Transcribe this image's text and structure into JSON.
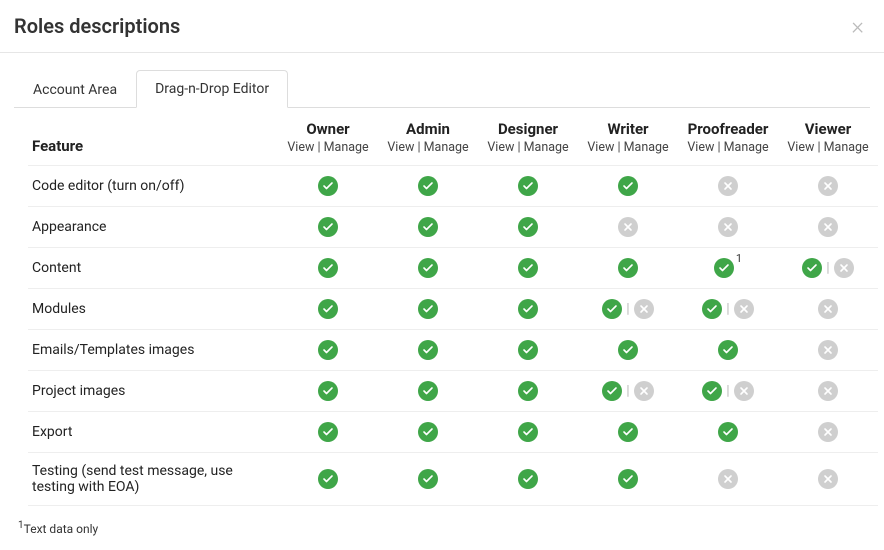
{
  "modal": {
    "title": "Roles descriptions"
  },
  "tabs": [
    {
      "id": "account-area",
      "label": "Account Area",
      "active": false
    },
    {
      "id": "dnd-editor",
      "label": "Drag-n-Drop Editor",
      "active": true
    }
  ],
  "table": {
    "feature_header": "Feature",
    "role_sub": "View | Manage",
    "roles": [
      {
        "id": "owner",
        "name": "Owner"
      },
      {
        "id": "admin",
        "name": "Admin"
      },
      {
        "id": "designer",
        "name": "Designer"
      },
      {
        "id": "writer",
        "name": "Writer"
      },
      {
        "id": "proofreader",
        "name": "Proofreader"
      },
      {
        "id": "viewer",
        "name": "Viewer"
      }
    ],
    "features": [
      {
        "id": "code-editor",
        "label": "Code editor (turn on/off)",
        "cells": [
          {
            "t": "yes"
          },
          {
            "t": "yes"
          },
          {
            "t": "yes"
          },
          {
            "t": "yes"
          },
          {
            "t": "no"
          },
          {
            "t": "no"
          }
        ]
      },
      {
        "id": "appearance",
        "label": "Appearance",
        "cells": [
          {
            "t": "yes"
          },
          {
            "t": "yes"
          },
          {
            "t": "yes"
          },
          {
            "t": "no"
          },
          {
            "t": "no"
          },
          {
            "t": "no"
          }
        ]
      },
      {
        "id": "content",
        "label": "Content",
        "cells": [
          {
            "t": "yes"
          },
          {
            "t": "yes"
          },
          {
            "t": "yes"
          },
          {
            "t": "yes"
          },
          {
            "t": "yes",
            "sup": "1"
          },
          {
            "t": "split",
            "view": "yes",
            "manage": "no"
          }
        ]
      },
      {
        "id": "modules",
        "label": "Modules",
        "cells": [
          {
            "t": "yes"
          },
          {
            "t": "yes"
          },
          {
            "t": "yes"
          },
          {
            "t": "split",
            "view": "yes",
            "manage": "no"
          },
          {
            "t": "split",
            "view": "yes",
            "manage": "no"
          },
          {
            "t": "no"
          }
        ]
      },
      {
        "id": "emails-templates-images",
        "label": "Emails/Templates images",
        "cells": [
          {
            "t": "yes"
          },
          {
            "t": "yes"
          },
          {
            "t": "yes"
          },
          {
            "t": "yes"
          },
          {
            "t": "yes"
          },
          {
            "t": "no"
          }
        ]
      },
      {
        "id": "project-images",
        "label": "Project images",
        "cells": [
          {
            "t": "yes"
          },
          {
            "t": "yes"
          },
          {
            "t": "yes"
          },
          {
            "t": "split",
            "view": "yes",
            "manage": "no"
          },
          {
            "t": "split",
            "view": "yes",
            "manage": "no"
          },
          {
            "t": "no"
          }
        ]
      },
      {
        "id": "export",
        "label": "Export",
        "cells": [
          {
            "t": "yes"
          },
          {
            "t": "yes"
          },
          {
            "t": "yes"
          },
          {
            "t": "yes"
          },
          {
            "t": "yes"
          },
          {
            "t": "no"
          }
        ]
      },
      {
        "id": "testing",
        "label": "Testing (send test message, use testing with EOA)",
        "cells": [
          {
            "t": "yes"
          },
          {
            "t": "yes"
          },
          {
            "t": "yes"
          },
          {
            "t": "yes"
          },
          {
            "t": "no"
          },
          {
            "t": "no"
          }
        ]
      }
    ]
  },
  "footnote": {
    "marker": "1",
    "text": "Text data only"
  },
  "colors": {
    "yes": "#3fa648",
    "no": "#cfcfcf",
    "border": "#e6e6e6"
  }
}
